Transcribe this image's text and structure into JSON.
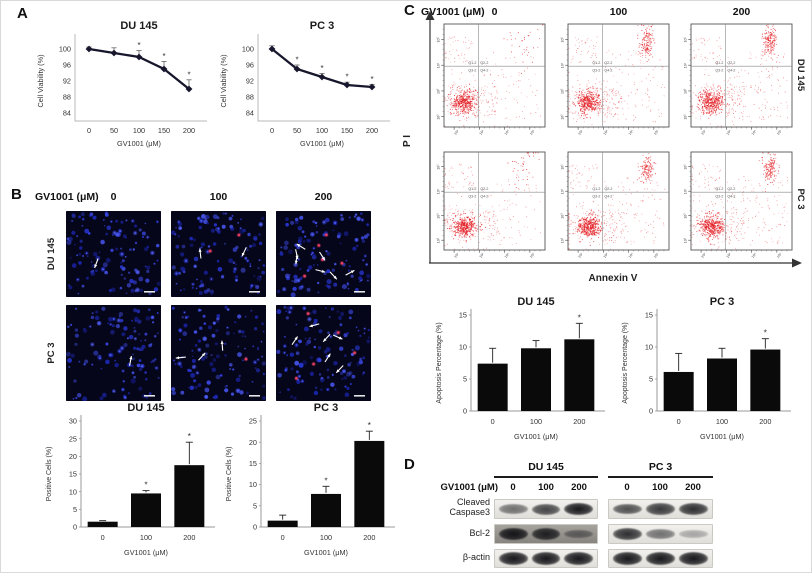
{
  "panels": {
    "a": {
      "label": "A"
    },
    "b": {
      "label": "B",
      "header": "GV1001 (μM)",
      "doses": [
        "0",
        "100",
        "200"
      ],
      "row_labels": [
        "DU 145",
        "PC 3"
      ],
      "microscopy": {
        "arrow_counts": {
          "du145": [
            1,
            2,
            7
          ],
          "pc3": [
            1,
            3,
            6
          ]
        },
        "positive_cell_counts": {
          "du145": [
            0,
            2,
            5
          ],
          "pc3": [
            0,
            1,
            5
          ]
        },
        "stain_colors": {
          "nucleus": "#2836d2",
          "positive": "#d93858"
        }
      }
    },
    "c": {
      "label": "C",
      "header": "GV1001 (μM)",
      "doses": [
        "0",
        "100",
        "200"
      ],
      "row_labels": [
        "DU 145",
        "PC 3"
      ],
      "y_axis_label": "P I",
      "x_axis_label": "Annexin V",
      "quadrant_labels": [
        "Q1-2",
        "Q2-2",
        "Q3-2",
        "Q4-2"
      ],
      "axis_decades": [
        "10²",
        "10³",
        "10⁴",
        "10⁵"
      ],
      "flow": {
        "dot_color": "#e32127",
        "upper_right_density": {
          "du145": [
            0.2,
            0.85,
            1.0
          ],
          "pc3": [
            0.25,
            0.8,
            0.9
          ]
        }
      }
    },
    "d": {
      "label": "D",
      "groups": [
        "DU 145",
        "PC 3"
      ],
      "header": "GV1001 (μM)",
      "doses": [
        "0",
        "100",
        "200"
      ],
      "proteins": [
        "Cleaved Caspase3",
        "Bcl-2",
        "β-actin"
      ],
      "band_intensity": {
        "cleaved_caspase3": {
          "du145": [
            0.55,
            0.75,
            0.95
          ],
          "pc3": [
            0.7,
            0.8,
            0.85
          ]
        },
        "bcl2": {
          "du145": [
            0.95,
            0.88,
            0.45
          ],
          "pc3": [
            0.85,
            0.55,
            0.3
          ]
        },
        "beta_actin": {
          "du145": [
            0.95,
            0.95,
            0.95
          ],
          "pc3": [
            0.95,
            0.95,
            0.95
          ]
        }
      },
      "dark_strip": "bcl2_du145"
    }
  },
  "chart_data": [
    {
      "id": "viability_du145",
      "type": "line",
      "title": "DU 145",
      "xlabel": "GV1001 (μM)",
      "ylabel": "Cell Viability (%)",
      "x": [
        0,
        50,
        100,
        150,
        200
      ],
      "y": [
        100,
        99,
        98,
        95,
        90
      ],
      "err": [
        0.5,
        1.3,
        1.6,
        1.9,
        2.3
      ],
      "sig": [
        false,
        false,
        true,
        true,
        true
      ],
      "ylim": [
        82,
        102
      ],
      "yticks": [
        84,
        88,
        92,
        96,
        100
      ]
    },
    {
      "id": "viability_pc3",
      "type": "line",
      "title": "PC 3",
      "xlabel": "GV1001 (μM)",
      "ylabel": "Cell Viability (%)",
      "x": [
        0,
        50,
        100,
        150,
        200
      ],
      "y": [
        100,
        95,
        93,
        91,
        90.5
      ],
      "err": [
        0.8,
        1.0,
        0.9,
        0.7,
        0.6
      ],
      "sig": [
        false,
        true,
        true,
        true,
        true
      ],
      "ylim": [
        82,
        102
      ],
      "yticks": [
        84,
        88,
        92,
        96,
        100
      ]
    },
    {
      "id": "positive_du145",
      "type": "bar",
      "title": "DU 145",
      "xlabel": "GV1001 (μM)",
      "ylabel": "Positive Cells (%)",
      "categories": [
        "0",
        "100",
        "200"
      ],
      "values": [
        1.5,
        9.5,
        17.5
      ],
      "err": [
        0.3,
        0.8,
        6.5
      ],
      "sig": [
        false,
        true,
        true
      ],
      "ylim": [
        0,
        30
      ],
      "yticks": [
        0,
        5,
        10,
        15,
        20,
        25,
        30
      ]
    },
    {
      "id": "positive_pc3",
      "type": "bar",
      "title": "PC 3",
      "xlabel": "GV1001 (μM)",
      "ylabel": "Positive Cells (%)",
      "categories": [
        "0",
        "100",
        "200"
      ],
      "values": [
        1.5,
        7.8,
        20.3
      ],
      "err": [
        1.3,
        1.8,
        2.3
      ],
      "sig": [
        false,
        true,
        true
      ],
      "ylim": [
        0,
        25
      ],
      "yticks": [
        0,
        5,
        10,
        15,
        20,
        25
      ]
    },
    {
      "id": "apoptosis_du145",
      "type": "bar",
      "title": "DU 145",
      "xlabel": "GV1001 (μM)",
      "ylabel": "Apoptosis Percentage (%)",
      "categories": [
        "0",
        "100",
        "200"
      ],
      "values": [
        7.4,
        9.8,
        11.2
      ],
      "err": [
        2.4,
        1.2,
        2.5
      ],
      "sig": [
        false,
        false,
        true
      ],
      "ylim": [
        0,
        15
      ],
      "yticks": [
        0,
        5,
        10,
        15
      ]
    },
    {
      "id": "apoptosis_pc3",
      "type": "bar",
      "title": "PC 3",
      "xlabel": "GV1001 (μM)",
      "ylabel": "Apoptosis Percentage (%)",
      "categories": [
        "0",
        "100",
        "200"
      ],
      "values": [
        6.1,
        8.2,
        9.6
      ],
      "err": [
        2.9,
        1.6,
        1.7
      ],
      "sig": [
        false,
        false,
        true
      ],
      "ylim": [
        0,
        15
      ],
      "yticks": [
        0,
        5,
        10,
        15
      ]
    }
  ]
}
